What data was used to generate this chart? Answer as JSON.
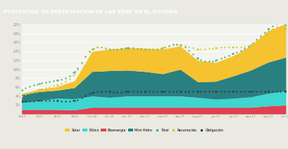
{
  "title": "PORCENTAJE DE PARTICIPACIÓN DE LAS ERNC EN EL SISTEMA",
  "background_color": "#eaeae2",
  "plot_bg": "#f4f4ee",
  "xlabels": [
    "2012",
    "2013",
    "2014",
    "2015",
    "nov.16",
    "dic.16",
    "ene.17",
    "feb.17",
    "mar.17",
    "abr.17",
    "may.17",
    "jun.17",
    "jul.17",
    "ago.17",
    "sep.17",
    "oct.17"
  ],
  "ylim": [
    0,
    20
  ],
  "yticks": [
    2,
    4,
    6,
    8,
    10,
    12,
    14,
    16,
    18,
    20
  ],
  "colors": {
    "solar": "#f5c230",
    "eolico": "#3dd6d0",
    "bioenergia": "#e04050",
    "mini_hidro": "#2a8080",
    "total": "#2aaa88",
    "reconocido": "#d4c820",
    "obligacion": "#303050"
  },
  "bioenergia": [
    1.0,
    1.0,
    1.0,
    0.9,
    1.5,
    1.5,
    1.5,
    1.5,
    1.5,
    1.5,
    1.5,
    1.5,
    1.5,
    1.5,
    1.8,
    2.0
  ],
  "eolico": [
    1.5,
    2.0,
    2.5,
    2.5,
    2.5,
    2.2,
    2.5,
    2.5,
    2.5,
    2.5,
    2.2,
    1.8,
    2.0,
    2.3,
    2.8,
    3.2
  ],
  "mini_hidro": [
    1.8,
    2.0,
    1.8,
    2.5,
    5.5,
    6.0,
    5.8,
    5.5,
    5.0,
    6.0,
    3.5,
    4.0,
    5.0,
    6.0,
    7.0,
    7.5
  ],
  "solar": [
    0.3,
    0.5,
    0.8,
    1.5,
    4.5,
    4.8,
    5.0,
    5.2,
    5.5,
    5.2,
    4.8,
    4.2,
    4.5,
    5.5,
    7.0,
    7.5
  ],
  "total": [
    5.3,
    6.8,
    7.5,
    9.5,
    14.5,
    14.5,
    14.8,
    14.5,
    14.8,
    15.5,
    12.5,
    12.0,
    13.5,
    15.5,
    19.0,
    20.0
  ],
  "reconocido": [
    4.0,
    5.5,
    6.5,
    9.0,
    14.5,
    14.5,
    14.5,
    14.5,
    14.8,
    15.5,
    14.5,
    14.8,
    15.0,
    15.5,
    18.5,
    19.0
  ],
  "obligacion": [
    2.8,
    3.0,
    3.0,
    3.0,
    4.8,
    5.0,
    5.0,
    5.0,
    5.0,
    5.0,
    5.0,
    5.0,
    5.0,
    5.0,
    5.0,
    5.0
  ]
}
